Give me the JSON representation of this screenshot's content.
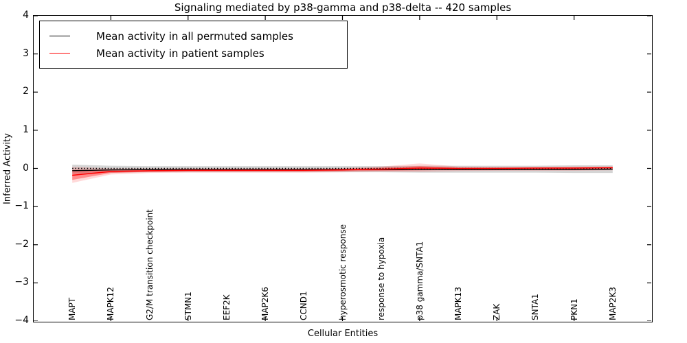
{
  "title": "Signaling mediated by p38-gamma and p38-delta -- 420 samples",
  "legend": {
    "entries": [
      {
        "label": "Mean activity in all permuted samples",
        "color": "#000000"
      },
      {
        "label": "Mean activity in patient samples",
        "color": "#ff0000"
      }
    ]
  },
  "chart_data": {
    "type": "line",
    "title": "Signaling mediated by p38-gamma and p38-delta -- 420 samples",
    "xlabel": "Cellular Entities",
    "ylabel": "Inferred Activity",
    "xlim": [
      0,
      16
    ],
    "ylim": [
      -4,
      4
    ],
    "grid": false,
    "legend_position": "upper left",
    "y_tick_values": [
      4,
      3,
      2,
      1,
      0,
      -1,
      -2,
      -3,
      -4
    ],
    "y_tick_labels": [
      "4",
      "3",
      "2",
      "1",
      "0",
      "−1",
      "−2",
      "−3",
      "−4"
    ],
    "x_major_tick_positions": [
      2,
      4,
      6,
      8,
      10,
      12,
      14
    ],
    "categories": [
      "MAPT",
      "MAPK12",
      "G2/M transition checkpoint",
      "STMN1",
      "EEF2K",
      "MAP2K6",
      "CCND1",
      "hyperosmotic response",
      "response to hypoxia",
      "p38 gamma/SNTA1",
      "MAPK13",
      "ZAK",
      "SNTA1",
      "PKN1",
      "MAP2K3"
    ],
    "x": [
      1,
      2,
      3,
      4,
      5,
      6,
      7,
      8,
      9,
      10,
      11,
      12,
      13,
      14,
      15
    ],
    "series": [
      {
        "name": "zero-reference",
        "color": "#000000",
        "style": "dotted",
        "width": 1.5,
        "values": [
          0,
          0,
          0,
          0,
          0,
          0,
          0,
          0,
          0,
          0,
          0,
          0,
          0,
          0,
          0
        ]
      },
      {
        "name": "Mean activity in all permuted samples",
        "color": "#000000",
        "style": "solid",
        "width": 1.4,
        "values": [
          -0.06,
          -0.04,
          -0.03,
          -0.03,
          -0.03,
          -0.03,
          -0.03,
          -0.03,
          -0.03,
          -0.03,
          -0.03,
          -0.03,
          -0.03,
          -0.03,
          -0.02
        ]
      },
      {
        "name": "Mean activity in patient samples",
        "color": "#ff0000",
        "style": "solid",
        "width": 1.5,
        "values": [
          -0.18,
          -0.08,
          -0.06,
          -0.05,
          -0.05,
          -0.05,
          -0.05,
          -0.04,
          -0.02,
          0.01,
          0.0,
          0.0,
          0.01,
          0.01,
          0.02
        ]
      }
    ],
    "bands": [
      {
        "name": "permuted-samples-std",
        "color": "#888888",
        "opacity": 0.35,
        "upper": [
          0.1,
          0.07,
          0.06,
          0.06,
          0.06,
          0.06,
          0.06,
          0.06,
          0.06,
          0.07,
          0.07,
          0.07,
          0.07,
          0.08,
          0.08
        ],
        "lower": [
          -0.14,
          -0.11,
          -0.1,
          -0.1,
          -0.1,
          -0.1,
          -0.1,
          -0.1,
          -0.1,
          -0.11,
          -0.11,
          -0.11,
          -0.11,
          -0.12,
          -0.12
        ]
      },
      {
        "name": "patient-samples-outer-std",
        "color": "#ff0000",
        "opacity": 0.15,
        "upper": [
          0.04,
          0.0,
          0.0,
          0.0,
          0.0,
          0.0,
          0.0,
          0.01,
          0.05,
          0.13,
          0.05,
          0.04,
          0.04,
          0.05,
          0.05
        ],
        "lower": [
          -0.38,
          -0.16,
          -0.12,
          -0.11,
          -0.11,
          -0.11,
          -0.11,
          -0.1,
          -0.09,
          -0.09,
          -0.07,
          -0.06,
          -0.06,
          -0.06,
          -0.05
        ]
      },
      {
        "name": "patient-samples-inner-std",
        "color": "#ff0000",
        "opacity": 0.35,
        "upper": [
          -0.04,
          -0.03,
          -0.02,
          -0.02,
          -0.02,
          -0.02,
          -0.02,
          -0.01,
          0.02,
          0.06,
          0.02,
          0.02,
          0.02,
          0.03,
          0.03
        ],
        "lower": [
          -0.3,
          -0.12,
          -0.09,
          -0.08,
          -0.08,
          -0.08,
          -0.08,
          -0.07,
          -0.06,
          -0.05,
          -0.04,
          -0.03,
          -0.03,
          -0.03,
          -0.02
        ]
      }
    ]
  }
}
